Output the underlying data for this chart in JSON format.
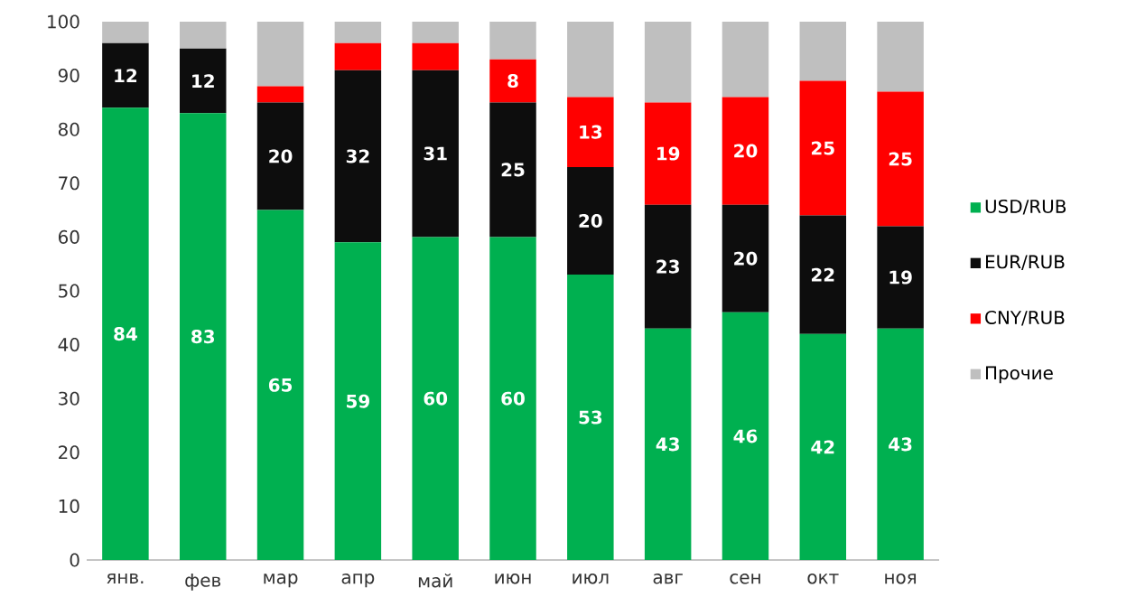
{
  "chart_data": {
    "type": "bar",
    "stacked": true,
    "legend": "right",
    "categories": [
      "янв.",
      "фев",
      "мар",
      "апр",
      "май",
      "июн",
      "июл",
      "авг",
      "сен",
      "окт",
      "ноя"
    ],
    "series": [
      {
        "name": "USD/RUB",
        "color": "#00b050",
        "values": [
          84,
          83,
          65,
          59,
          60,
          60,
          53,
          43,
          46,
          42,
          43
        ],
        "value_labels": [
          "84",
          "83",
          "65",
          "59",
          "60",
          "60",
          "53",
          "43",
          "46",
          "42",
          "43"
        ]
      },
      {
        "name": "EUR/RUB",
        "color": "#0d0d0d",
        "values": [
          12,
          12,
          20,
          32,
          31,
          25,
          20,
          23,
          20,
          22,
          19
        ],
        "value_labels": [
          "12",
          "12",
          "20",
          "32",
          "31",
          "25",
          "20",
          "23",
          "20",
          "22",
          "19"
        ]
      },
      {
        "name": "CNY/RUB",
        "color": "#ff0000",
        "values": [
          0,
          0,
          3,
          5,
          5,
          8,
          13,
          19,
          20,
          25,
          25
        ],
        "value_labels": [
          null,
          null,
          null,
          null,
          null,
          "8",
          "13",
          "19",
          "20",
          "25",
          "25"
        ]
      },
      {
        "name": "Прочие",
        "color": "#bfbfbf",
        "values": [
          4,
          5,
          12,
          4,
          4,
          7,
          14,
          15,
          14,
          11,
          13
        ]
      }
    ],
    "ylim": [
      0,
      100
    ],
    "yticks": [
      0,
      10,
      20,
      30,
      40,
      50,
      60,
      70,
      80,
      90,
      100
    ]
  }
}
